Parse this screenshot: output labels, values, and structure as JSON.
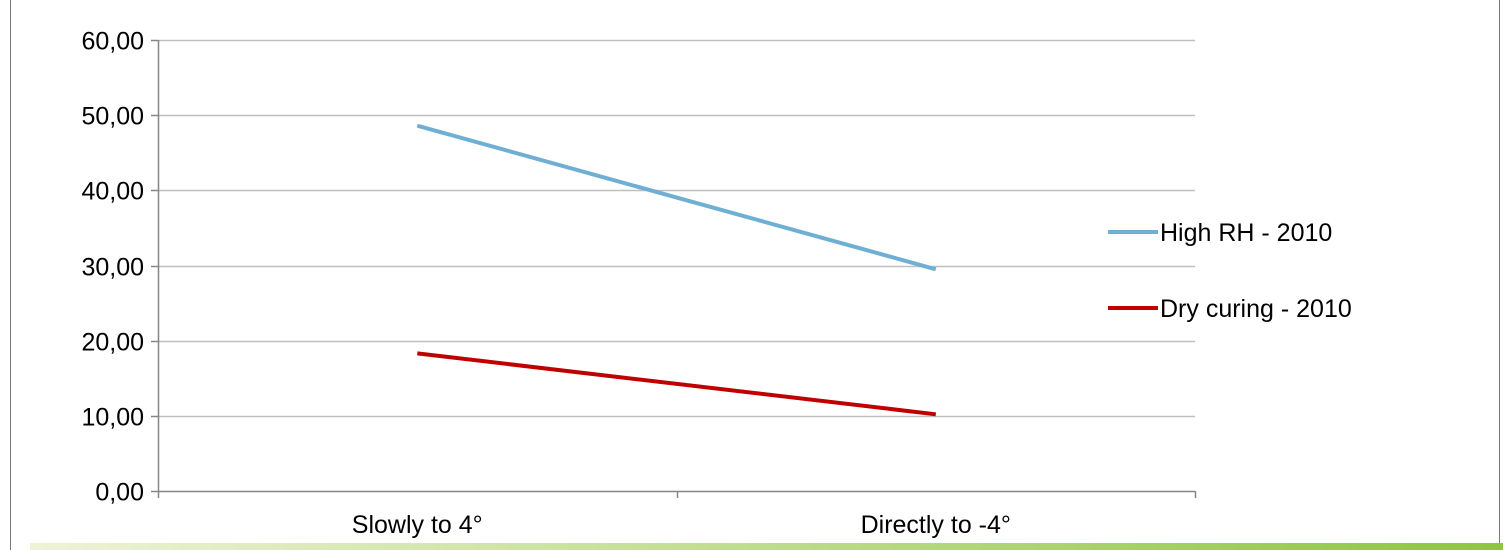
{
  "chart_data": {
    "type": "line",
    "title": "",
    "xlabel": "",
    "ylabel": "",
    "categories": [
      "Slowly to 4°",
      "Directly to -4°"
    ],
    "y_ticks": [
      "0,00",
      "10,00",
      "20,00",
      "30,00",
      "40,00",
      "50,00",
      "60,00"
    ],
    "ylim": [
      0,
      60
    ],
    "grid": "horizontal",
    "legend_position": "right",
    "series": [
      {
        "name": "High RH - 2010",
        "values": [
          48.6,
          29.5
        ],
        "color": "#70afd4"
      },
      {
        "name": "Dry curing - 2010",
        "values": [
          18.3,
          10.2
        ],
        "color": "#c00000"
      }
    ]
  },
  "colors": {
    "grid": "#bfbfbf",
    "axis": "#868686",
    "footer_bar_start": "#e8efc8",
    "footer_bar_end": "#8dc63f"
  }
}
